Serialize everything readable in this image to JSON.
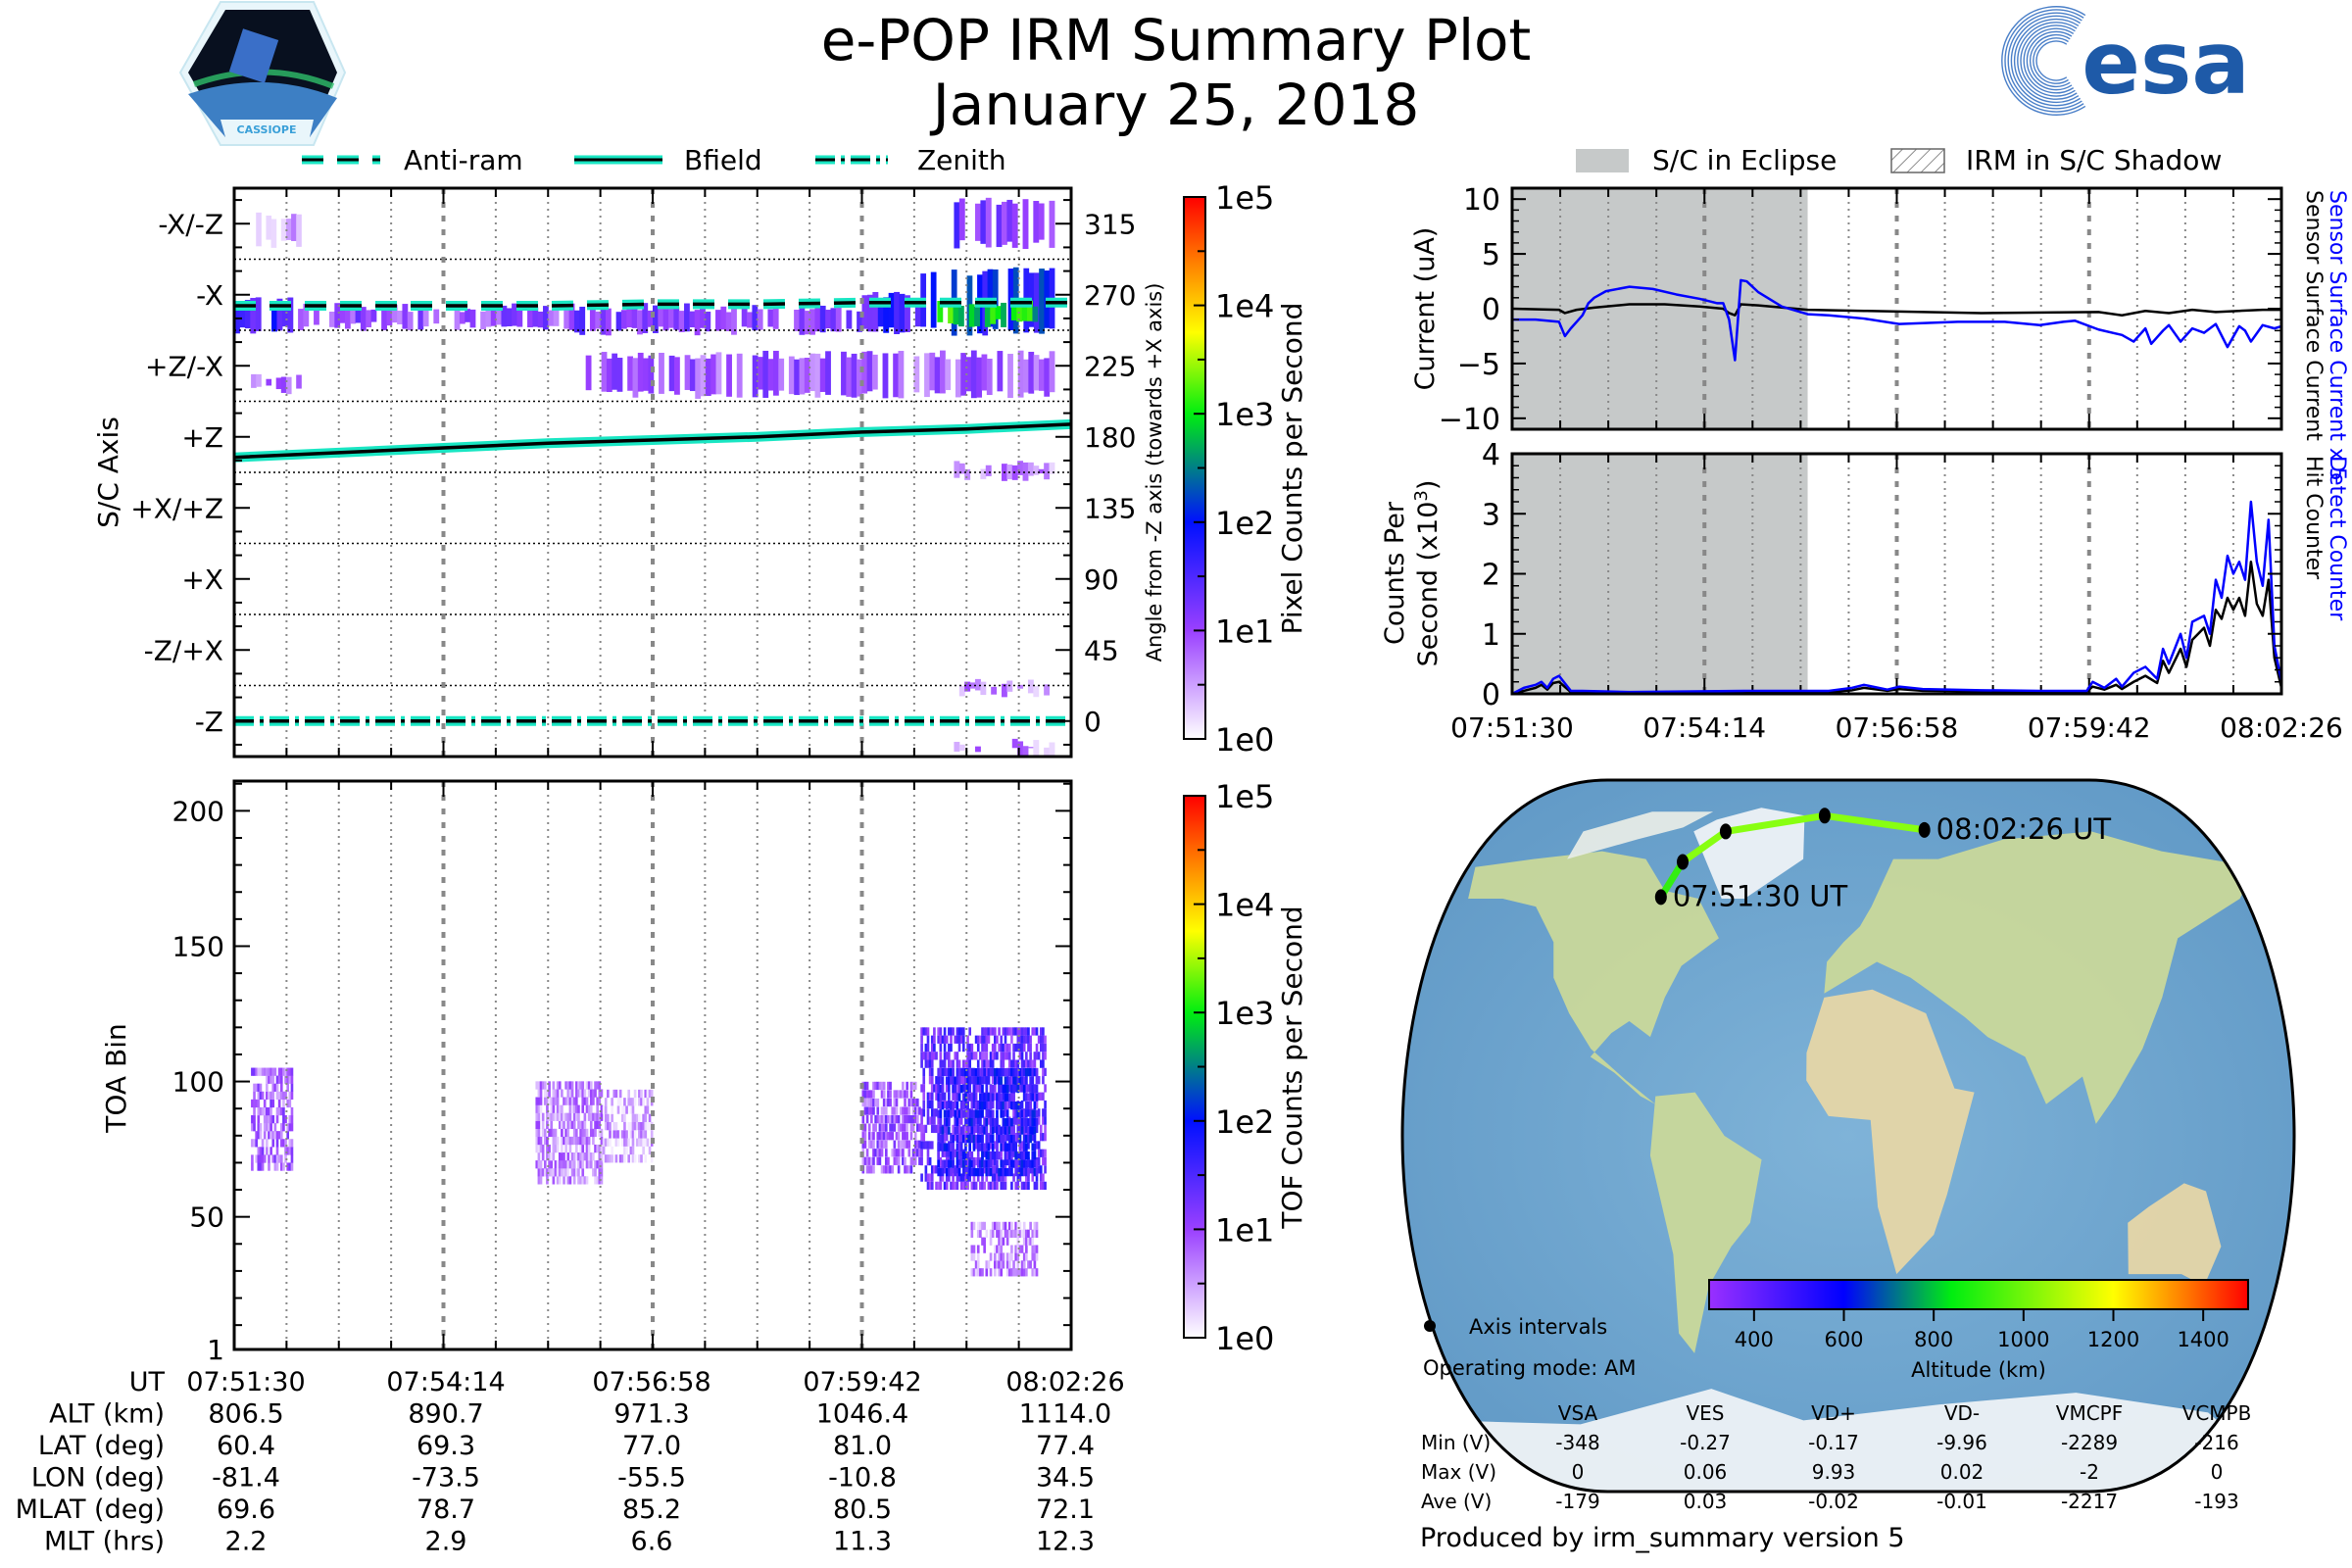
{
  "header": {
    "title_line1": "e-POP IRM Summary Plot",
    "title_line2": "January 25, 2018",
    "left_logo": "CASSIOPE",
    "right_logo": "esa"
  },
  "colors": {
    "accent_line": "#19e6c3",
    "eclipse": "#c6c9c9",
    "sensor_surface_current_x5": "#0000ff",
    "sensor_current": "#000000",
    "detect_counter": "#0000ff",
    "hit_counter": "#000000",
    "orbit_track": "#44ee11"
  },
  "time_axis": {
    "start": "07:51:30",
    "end": "08:02:26",
    "duration_s": 656,
    "tick_labels": [
      "07:51:30",
      "07:54:14",
      "07:56:58",
      "07:59:42",
      "08:02:26"
    ],
    "minor_intervals": 16
  },
  "left_legend": [
    {
      "label": "Anti-ram",
      "style": "dashed"
    },
    {
      "label": "Bfield",
      "style": "solid"
    },
    {
      "label": "Zenith",
      "style": "dashdot"
    }
  ],
  "right_legend": [
    {
      "label": "S/C in Eclipse",
      "style": "fill"
    },
    {
      "label": "IRM in S/C Shadow",
      "style": "hatch"
    }
  ],
  "chart_data": [
    {
      "type": "heatmap",
      "name": "pixel-angle-spectrogram",
      "ylabel": "S/C Axis",
      "y2label": "Angle from -Z axis (towards +X axis)",
      "ylim": [
        -22.5,
        337.5
      ],
      "axis_labels": [
        "-Z",
        "-Z/+X",
        "+X",
        "+X/+Z",
        "+Z",
        "+Z/-X",
        "-X",
        "-X/-Z"
      ],
      "angle_ticks": [
        0,
        45,
        90,
        135,
        180,
        225,
        270,
        315
      ],
      "colorbar": {
        "label": "Pixel Counts per Second",
        "ticks": [
          "1e0",
          "1e1",
          "1e2",
          "1e3",
          "1e4",
          "1e5"
        ],
        "scale": "log",
        "range": [
          1,
          100000
        ]
      },
      "lines": {
        "anti_ram_angle": [
          263,
          263,
          263,
          263,
          264,
          264,
          265,
          265,
          265
        ],
        "bfield_angle": [
          167,
          170,
          173,
          176,
          178,
          180,
          183,
          185,
          188
        ],
        "zenith_angle": [
          0,
          0,
          0,
          0,
          0,
          0,
          0,
          0,
          0
        ]
      },
      "intensity_regions": [
        {
          "t0": 0.0,
          "t1": 0.07,
          "a0": 247,
          "a1": 268,
          "log_level": 1.6
        },
        {
          "t0": 0.07,
          "t1": 0.4,
          "a0": 250,
          "a1": 262,
          "log_level": 1.0
        },
        {
          "t0": 0.4,
          "t1": 0.75,
          "a0": 247,
          "a1": 262,
          "log_level": 1.2
        },
        {
          "t0": 0.75,
          "t1": 0.82,
          "a0": 247,
          "a1": 270,
          "log_level": 1.6
        },
        {
          "t0": 0.82,
          "t1": 0.98,
          "a0": 247,
          "a1": 285,
          "log_level": 1.9
        },
        {
          "t0": 0.84,
          "t1": 0.96,
          "a0": 252,
          "a1": 265,
          "log_level": 2.9
        },
        {
          "t0": 0.86,
          "t1": 0.98,
          "a0": 302,
          "a1": 330,
          "log_level": 1.2
        },
        {
          "t0": 0.42,
          "t1": 0.98,
          "a0": 207,
          "a1": 232,
          "log_level": 0.9
        },
        {
          "t0": 0.02,
          "t1": 0.08,
          "a0": 210,
          "a1": 218,
          "log_level": 0.8
        },
        {
          "t0": 0.02,
          "t1": 0.08,
          "a0": 302,
          "a1": 320,
          "log_level": 0.5
        },
        {
          "t0": 0.86,
          "t1": 0.98,
          "a0": 155,
          "a1": 162,
          "log_level": 0.6
        },
        {
          "t0": 0.86,
          "t1": 0.98,
          "a0": 18,
          "a1": 24,
          "log_level": 0.6
        },
        {
          "t0": 0.86,
          "t1": 0.98,
          "a0": -20,
          "a1": -14,
          "log_level": 0.6
        }
      ]
    },
    {
      "type": "heatmap",
      "name": "toa-spectrogram",
      "ylabel": "TOA Bin",
      "ylim": [
        1,
        211
      ],
      "yticks": [
        1,
        50,
        100,
        150,
        200
      ],
      "colorbar": {
        "label": "TOF Counts per Second",
        "ticks": [
          "1e0",
          "1e1",
          "1e2",
          "1e3",
          "1e4",
          "1e5"
        ],
        "scale": "log",
        "range": [
          1,
          100000
        ]
      },
      "intensity_regions": [
        {
          "t0": 0.02,
          "t1": 0.07,
          "b0": 67,
          "b1": 105,
          "log_level": 0.8
        },
        {
          "t0": 0.36,
          "t1": 0.44,
          "b0": 62,
          "b1": 100,
          "log_level": 0.6
        },
        {
          "t0": 0.44,
          "t1": 0.5,
          "b0": 70,
          "b1": 97,
          "log_level": 0.4
        },
        {
          "t0": 0.75,
          "t1": 0.82,
          "b0": 66,
          "b1": 100,
          "log_level": 0.9
        },
        {
          "t0": 0.82,
          "t1": 0.97,
          "b0": 60,
          "b1": 120,
          "log_level": 1.3
        },
        {
          "t0": 0.84,
          "t1": 0.96,
          "b0": 65,
          "b1": 105,
          "log_level": 1.7
        },
        {
          "t0": 0.88,
          "t1": 0.96,
          "b0": 28,
          "b1": 48,
          "log_level": 0.6
        }
      ]
    },
    {
      "type": "line",
      "name": "current-plot",
      "ylabel": "Current (uA)",
      "y2label_series": [
        "Sensor Surface Current x 5",
        "Sensor Surface Current"
      ],
      "ylim": [
        -11,
        11
      ],
      "yticks": [
        -10,
        -5,
        0,
        5,
        10
      ],
      "eclipse": [
        0,
        252
      ],
      "series": [
        {
          "name": "Sensor Surface Current x 5",
          "color": "#0000ff",
          "t": [
            0,
            20,
            40,
            45,
            50,
            55,
            60,
            65,
            70,
            80,
            100,
            120,
            140,
            160,
            175,
            180,
            185,
            190,
            195,
            200,
            210,
            230,
            252,
            270,
            300,
            330,
            380,
            420,
            450,
            470,
            480,
            500,
            520,
            530,
            540,
            545,
            555,
            560,
            570,
            580,
            590,
            600,
            610,
            620,
            625,
            630,
            640,
            650,
            656
          ],
          "v": [
            -1.0,
            -1.0,
            -1.2,
            -2.5,
            -1.8,
            -1.2,
            -0.6,
            0.5,
            1.0,
            1.6,
            2.0,
            1.8,
            1.3,
            0.9,
            0.5,
            0.5,
            -1.0,
            -4.7,
            2.6,
            2.5,
            1.5,
            0.2,
            -0.5,
            -0.6,
            -0.9,
            -1.4,
            -1.2,
            -1.2,
            -1.5,
            -1.2,
            -1.1,
            -1.9,
            -2.4,
            -3.0,
            -1.8,
            -3.2,
            -2.0,
            -1.5,
            -3.0,
            -1.8,
            -2.2,
            -1.4,
            -3.5,
            -1.6,
            -2.0,
            -3.0,
            -1.5,
            -1.8,
            -1.6
          ]
        },
        {
          "name": "Sensor Surface Current",
          "color": "#000000",
          "t": [
            0,
            40,
            45,
            55,
            70,
            100,
            130,
            160,
            180,
            185,
            190,
            195,
            210,
            252,
            300,
            400,
            500,
            520,
            540,
            560,
            580,
            600,
            620,
            640,
            656
          ],
          "v": [
            0.0,
            -0.1,
            -0.4,
            -0.1,
            0.1,
            0.4,
            0.4,
            0.2,
            0.0,
            -0.4,
            -0.6,
            0.4,
            0.3,
            -0.1,
            -0.2,
            -0.4,
            -0.3,
            -0.6,
            -0.2,
            -0.4,
            -0.1,
            -0.3,
            -0.2,
            -0.1,
            -0.1
          ]
        }
      ]
    },
    {
      "type": "line",
      "name": "counts-plot",
      "ylabel": "Counts Per Second (x10^3)",
      "y2label_series": [
        "Detect Counter",
        "Hit Counter"
      ],
      "ylim": [
        0,
        4
      ],
      "yticks": [
        0,
        1,
        2,
        3,
        4
      ],
      "eclipse": [
        0,
        252
      ],
      "series": [
        {
          "name": "Detect Counter",
          "color": "#0000ff",
          "t": [
            0,
            10,
            20,
            25,
            30,
            35,
            40,
            50,
            60,
            100,
            200,
            270,
            290,
            300,
            320,
            330,
            350,
            400,
            450,
            490,
            495,
            505,
            515,
            520,
            530,
            540,
            550,
            555,
            560,
            570,
            575,
            580,
            590,
            595,
            600,
            605,
            610,
            615,
            620,
            625,
            630,
            635,
            640,
            645,
            650,
            656
          ],
          "v": [
            0.0,
            0.1,
            0.15,
            0.2,
            0.1,
            0.25,
            0.3,
            0.05,
            0.05,
            0.03,
            0.05,
            0.05,
            0.1,
            0.15,
            0.07,
            0.12,
            0.08,
            0.06,
            0.05,
            0.05,
            0.2,
            0.1,
            0.25,
            0.12,
            0.35,
            0.45,
            0.25,
            0.75,
            0.5,
            1.0,
            0.6,
            1.2,
            1.3,
            1.0,
            1.9,
            1.6,
            2.3,
            2.0,
            2.2,
            1.9,
            3.2,
            2.2,
            1.8,
            2.9,
            0.8,
            0.2
          ]
        },
        {
          "name": "Hit Counter",
          "color": "#000000",
          "t": [
            0,
            10,
            20,
            25,
            30,
            35,
            40,
            50,
            60,
            100,
            200,
            270,
            290,
            300,
            320,
            330,
            350,
            400,
            450,
            490,
            495,
            505,
            515,
            520,
            530,
            540,
            550,
            555,
            560,
            570,
            575,
            580,
            590,
            595,
            600,
            605,
            610,
            615,
            620,
            625,
            630,
            635,
            640,
            645,
            650,
            656
          ],
          "v": [
            0.0,
            0.05,
            0.1,
            0.15,
            0.07,
            0.18,
            0.2,
            0.03,
            0.03,
            0.02,
            0.03,
            0.03,
            0.06,
            0.1,
            0.05,
            0.08,
            0.05,
            0.04,
            0.04,
            0.04,
            0.12,
            0.07,
            0.15,
            0.08,
            0.2,
            0.3,
            0.18,
            0.55,
            0.35,
            0.75,
            0.45,
            0.9,
            1.1,
            0.8,
            1.4,
            1.25,
            1.6,
            1.4,
            1.6,
            1.3,
            2.2,
            1.5,
            1.3,
            1.9,
            0.6,
            0.1
          ]
        }
      ]
    },
    {
      "type": "scatter",
      "name": "orbit-map",
      "projection": "robinson",
      "track_lonlat": [
        [
          -81.4,
          60.4
        ],
        [
          -73.5,
          69.3
        ],
        [
          -55.5,
          77.0
        ],
        [
          -10.8,
          81.0
        ],
        [
          34.5,
          77.4
        ]
      ],
      "track_altitude_km": [
        806.5,
        890.7,
        971.3,
        1046.4,
        1114.0
      ],
      "labels": [
        "07:51:30 UT",
        "08:02:26 UT"
      ],
      "colorbar": {
        "label": "Altitude (km)",
        "ticks": [
          400,
          600,
          800,
          1000,
          1200,
          1400
        ],
        "range": [
          300,
          1500
        ]
      }
    }
  ],
  "orbit_table": {
    "row_labels": [
      "UT",
      "ALT (km)",
      "LAT (deg)",
      "LON (deg)",
      "MLAT (deg)",
      "MLT (hrs)"
    ],
    "columns": [
      [
        "07:51:30",
        "806.5",
        "60.4",
        "-81.4",
        "69.6",
        "2.2"
      ],
      [
        "07:54:14",
        "890.7",
        "69.3",
        "-73.5",
        "78.7",
        "2.9"
      ],
      [
        "07:56:58",
        "971.3",
        "77.0",
        "-55.5",
        "85.2",
        "6.6"
      ],
      [
        "07:59:42",
        "1046.4",
        "81.0",
        "-10.8",
        "80.5",
        "11.3"
      ],
      [
        "08:02:26",
        "1114.0",
        "77.4",
        "34.5",
        "72.1",
        "12.3"
      ]
    ]
  },
  "map_legend": {
    "axis_intervals": "Axis intervals",
    "operating_mode": "Operating mode: AM"
  },
  "voltage_table": {
    "headers": [
      "VSA",
      "VES",
      "VD+",
      "VD-",
      "VMCPF",
      "VCMPB"
    ],
    "rows": [
      {
        "label": "Min (V)",
        "values": [
          "-348",
          "-0.27",
          "-0.17",
          "-9.96",
          "-2289",
          "-216"
        ]
      },
      {
        "label": "Max (V)",
        "values": [
          "0",
          "0.06",
          "9.93",
          "0.02",
          "-2",
          "0"
        ]
      },
      {
        "label": "Ave (V)",
        "values": [
          "-179",
          "0.03",
          "-0.02",
          "-0.01",
          "-2217",
          "-193"
        ]
      }
    ]
  },
  "footer": "Produced by irm_summary version 5"
}
